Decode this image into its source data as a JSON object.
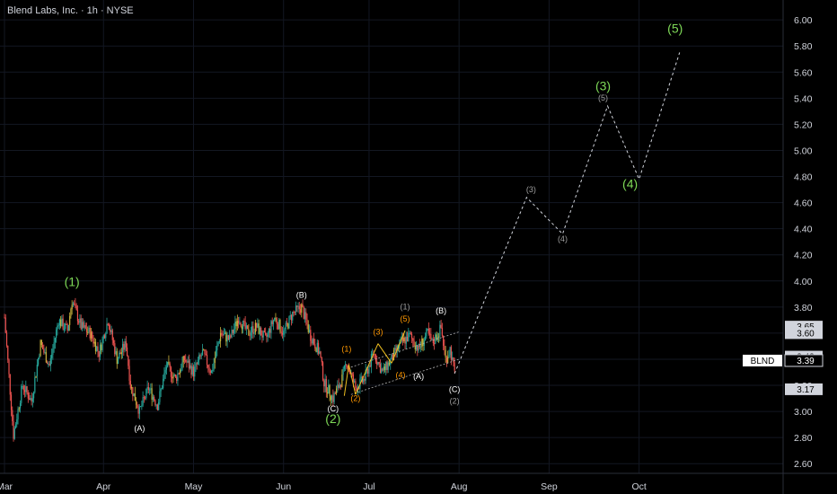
{
  "header": {
    "title": "Blend Labs, Inc. · 1h · NYSE"
  },
  "chart_data": {
    "type": "candlestick",
    "symbol": "BLND",
    "timeframe": "1h",
    "exchange": "NYSE",
    "ylim": [
      2.55,
      6.08
    ],
    "xlim": [
      0,
      172
    ],
    "y_ticks": [
      "2.60",
      "2.80",
      "3.00",
      "3.20",
      "3.40",
      "3.60",
      "3.80",
      "4.00",
      "4.20",
      "4.40",
      "4.60",
      "4.80",
      "5.00",
      "5.20",
      "5.40",
      "5.60",
      "5.80",
      "6.00"
    ],
    "x_ticks": [
      {
        "label": "Mar",
        "x": 0
      },
      {
        "label": "Apr",
        "x": 22
      },
      {
        "label": "May",
        "x": 42
      },
      {
        "label": "Jun",
        "x": 62
      },
      {
        "label": "Jul",
        "x": 81
      },
      {
        "label": "Aug",
        "x": 101
      },
      {
        "label": "Sep",
        "x": 121
      },
      {
        "label": "Oct",
        "x": 141
      }
    ],
    "price_path": [
      [
        0,
        3.72
      ],
      [
        2,
        2.82
      ],
      [
        4,
        3.2
      ],
      [
        6,
        3.08
      ],
      [
        8,
        3.52
      ],
      [
        10,
        3.35
      ],
      [
        12,
        3.7
      ],
      [
        14,
        3.62
      ],
      [
        15,
        3.85
      ],
      [
        17,
        3.65
      ],
      [
        19,
        3.6
      ],
      [
        21,
        3.45
      ],
      [
        23,
        3.7
      ],
      [
        25,
        3.4
      ],
      [
        27,
        3.52
      ],
      [
        28,
        3.2
      ],
      [
        30,
        3.0
      ],
      [
        32,
        3.18
      ],
      [
        34,
        3.05
      ],
      [
        36,
        3.35
      ],
      [
        38,
        3.25
      ],
      [
        40,
        3.4
      ],
      [
        42,
        3.3
      ],
      [
        44,
        3.45
      ],
      [
        46,
        3.3
      ],
      [
        48,
        3.6
      ],
      [
        50,
        3.55
      ],
      [
        52,
        3.72
      ],
      [
        54,
        3.6
      ],
      [
        56,
        3.65
      ],
      [
        58,
        3.55
      ],
      [
        60,
        3.72
      ],
      [
        62,
        3.6
      ],
      [
        64,
        3.75
      ],
      [
        66,
        3.8
      ],
      [
        68,
        3.58
      ],
      [
        70,
        3.45
      ],
      [
        71,
        3.22
      ],
      [
        73,
        3.1
      ],
      [
        75,
        3.25
      ],
      [
        76,
        3.38
      ],
      [
        78,
        3.18
      ],
      [
        80,
        3.25
      ],
      [
        82,
        3.45
      ],
      [
        84,
        3.3
      ],
      [
        86,
        3.4
      ],
      [
        88,
        3.52
      ],
      [
        90,
        3.58
      ],
      [
        92,
        3.48
      ],
      [
        94,
        3.6
      ],
      [
        95,
        3.52
      ],
      [
        97,
        3.64
      ],
      [
        98,
        3.4
      ],
      [
        99,
        3.48
      ],
      [
        100,
        3.29
      ]
    ],
    "projection": [
      {
        "x": 100,
        "y": 3.29
      },
      {
        "x": 116,
        "y": 4.64
      },
      {
        "x": 124,
        "y": 4.36
      },
      {
        "x": 134,
        "y": 5.34
      },
      {
        "x": 141,
        "y": 4.78
      },
      {
        "x": 150,
        "y": 5.75
      }
    ],
    "wave_labels": [
      {
        "text": "(1)",
        "x": 15,
        "y": 3.96,
        "color": "#7ed957",
        "size": "big"
      },
      {
        "text": "(A)",
        "x": 30,
        "y": 2.85,
        "color": "#ffffff",
        "size": "small"
      },
      {
        "text": "(B)",
        "x": 66,
        "y": 3.87,
        "color": "#ffffff",
        "size": "small"
      },
      {
        "text": "(C)",
        "x": 73,
        "y": 3.0,
        "color": "#ffffff",
        "size": "small"
      },
      {
        "text": "(2)",
        "x": 73,
        "y": 2.91,
        "color": "#7ed957",
        "size": "big"
      },
      {
        "text": "(1)",
        "x": 76,
        "y": 3.46,
        "color": "#ff9800",
        "size": "small"
      },
      {
        "text": "(2)",
        "x": 78,
        "y": 3.08,
        "color": "#ff9800",
        "size": "small"
      },
      {
        "text": "(3)",
        "x": 83,
        "y": 3.59,
        "color": "#ff9800",
        "size": "small"
      },
      {
        "text": "(4)",
        "x": 88,
        "y": 3.26,
        "color": "#ff9800",
        "size": "small"
      },
      {
        "text": "(5)",
        "x": 89,
        "y": 3.69,
        "color": "#ff9800",
        "size": "small"
      },
      {
        "text": "(1)",
        "x": 89,
        "y": 3.78,
        "color": "#9e9e9e",
        "size": "small"
      },
      {
        "text": "(A)",
        "x": 92,
        "y": 3.25,
        "color": "#ffffff",
        "size": "small"
      },
      {
        "text": "(B)",
        "x": 97,
        "y": 3.75,
        "color": "#ffffff",
        "size": "small"
      },
      {
        "text": "(C)",
        "x": 100,
        "y": 3.15,
        "color": "#ffffff",
        "size": "small"
      },
      {
        "text": "(2)",
        "x": 100,
        "y": 3.06,
        "color": "#9e9e9e",
        "size": "small"
      },
      {
        "text": "(3)",
        "x": 117,
        "y": 4.68,
        "color": "#9e9e9e",
        "size": "small"
      },
      {
        "text": "(4)",
        "x": 124,
        "y": 4.3,
        "color": "#9e9e9e",
        "size": "small"
      },
      {
        "text": "(3)",
        "x": 133,
        "y": 5.46,
        "color": "#7ed957",
        "size": "big"
      },
      {
        "text": "(5)",
        "x": 133,
        "y": 5.38,
        "color": "#9e9e9e",
        "size": "small"
      },
      {
        "text": "(4)",
        "x": 139,
        "y": 4.71,
        "color": "#7ed957",
        "size": "big"
      },
      {
        "text": "(5)",
        "x": 149,
        "y": 5.9,
        "color": "#7ed957",
        "size": "big"
      }
    ],
    "price_badges": [
      {
        "text": "3.65",
        "y": 3.65,
        "style": "light"
      },
      {
        "text": "3.60",
        "y": 3.6,
        "style": "light"
      },
      {
        "text": "3.42",
        "y": 3.42,
        "style": "light"
      },
      {
        "text": "3.39",
        "y": 3.39,
        "style": "current"
      },
      {
        "text": "3.17",
        "y": 3.17,
        "style": "light"
      }
    ],
    "ticker_badge": {
      "text": "BLND",
      "y": 3.39
    },
    "channel": {
      "upper": [
        [
          77,
          3.34
        ],
        [
          101,
          3.61
        ]
      ],
      "lower": [
        [
          77,
          3.13
        ],
        [
          101,
          3.4
        ]
      ]
    },
    "colors": {
      "up": "#26a69a",
      "down": "#ef5350",
      "neutral": "#c9b13b",
      "projection": "#d1d4dc",
      "wave_orange": "#ff9800",
      "wave_green": "#7ed957"
    }
  }
}
